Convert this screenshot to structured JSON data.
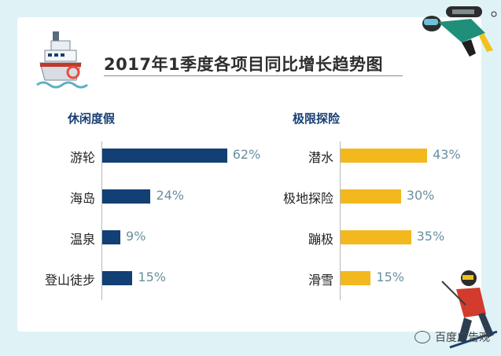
{
  "title": "2017年1季度各项目同比增长趋势图",
  "watermark": "百度广告观",
  "chart_data": [
    {
      "type": "bar",
      "orientation": "horizontal",
      "title": "休闲度假",
      "categories": [
        "游轮",
        "海岛",
        "温泉",
        "登山徒步"
      ],
      "values": [
        62,
        24,
        9,
        15
      ],
      "value_labels": [
        "62%",
        "24%",
        "9%",
        "15%"
      ],
      "unit": "%",
      "color": "#123f74"
    },
    {
      "type": "bar",
      "orientation": "horizontal",
      "title": "极限探险",
      "categories": [
        "潜水",
        "极地探险",
        "蹦极",
        "滑雪"
      ],
      "values": [
        43,
        30,
        35,
        15
      ],
      "value_labels": [
        "43%",
        "30%",
        "35%",
        "15%"
      ],
      "unit": "%",
      "color": "#f3b81d"
    }
  ],
  "icons": [
    "cruise-ship-icon",
    "scuba-diver-icon",
    "skier-icon",
    "wechat-icon"
  ]
}
